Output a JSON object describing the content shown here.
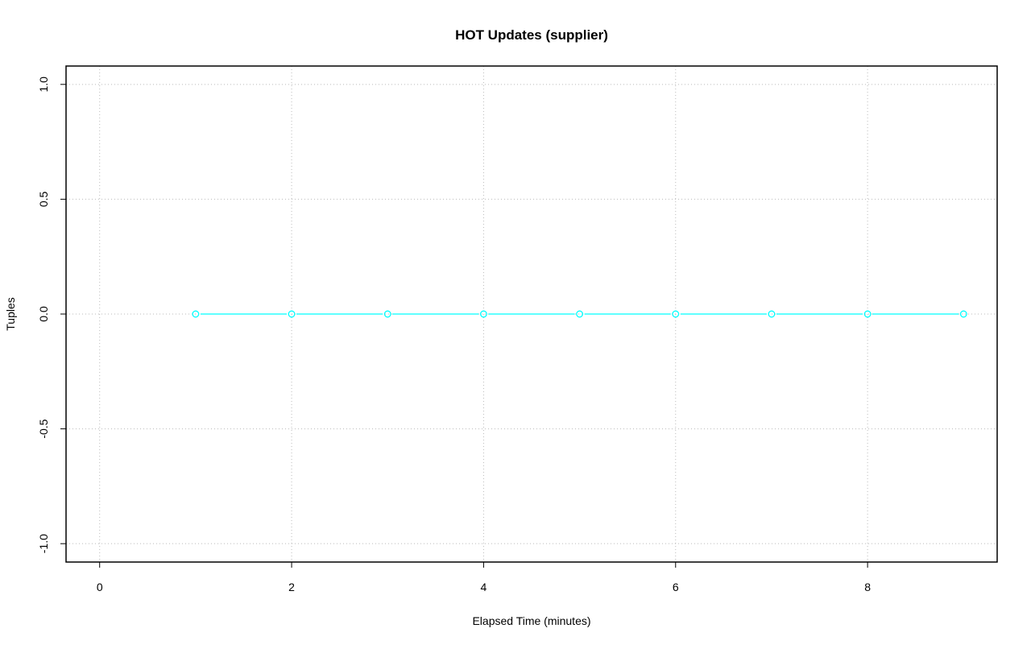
{
  "chart_data": {
    "type": "line",
    "title": "HOT Updates (supplier)",
    "xlabel": "Elapsed Time (minutes)",
    "ylabel": "Tuples",
    "xlim": [
      -0.35,
      9.35
    ],
    "ylim": [
      -1.08,
      1.08
    ],
    "x_ticks": [
      0,
      2,
      4,
      6,
      8
    ],
    "x_tick_labels": [
      "0",
      "2",
      "4",
      "6",
      "8"
    ],
    "y_ticks": [
      -1.0,
      -0.5,
      0.0,
      0.5,
      1.0
    ],
    "y_tick_labels": [
      "-1.0",
      "-0.5",
      "0.0",
      "0.5",
      "1.0"
    ],
    "grid": true,
    "series": [
      {
        "x": [
          1,
          2,
          3,
          4,
          5,
          6,
          7,
          8,
          9
        ],
        "y": [
          0,
          0,
          0,
          0,
          0,
          0,
          0,
          0,
          0
        ],
        "color": "#00ffff",
        "marker": "open-circle"
      }
    ]
  }
}
